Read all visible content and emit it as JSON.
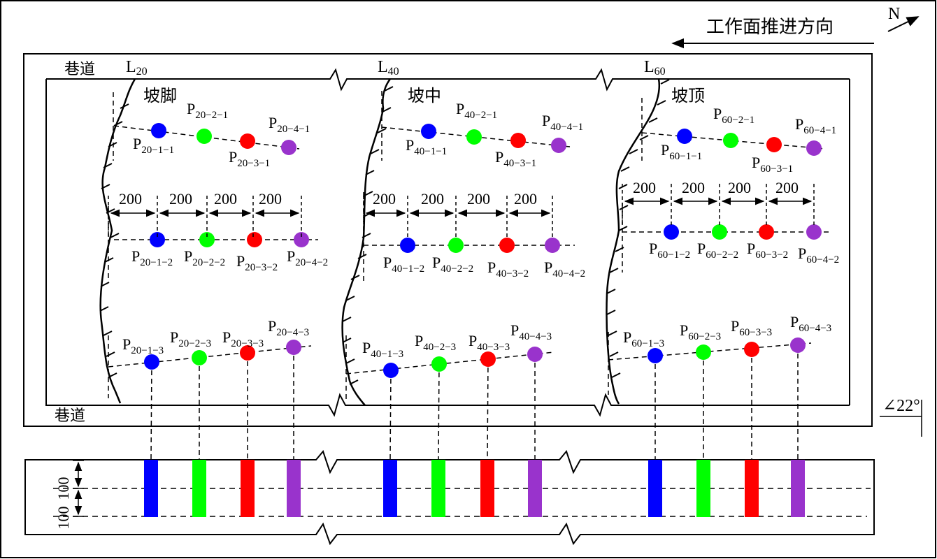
{
  "direction": {
    "label": "工作面推进方向",
    "north": "N"
  },
  "roadway_label": "巷道",
  "angle_label": "∠22°",
  "column_dims": {
    "a": "100",
    "b": "100"
  },
  "spacing_label": "200",
  "colors": {
    "p1": "#0000ff",
    "p2": "#00ff00",
    "p3": "#ff0000",
    "p4": "#9933cc"
  },
  "sections": [
    {
      "line": "L",
      "line_sub": "20",
      "position": "坡脚",
      "rows": [
        [
          "20-1-1",
          "20-2-1",
          "20-3-1",
          "20-4-1"
        ],
        [
          "20-1-2",
          "20-2-2",
          "20-3-2",
          "20-4-2"
        ],
        [
          "20-1-3",
          "20-2-3",
          "20-3-3",
          "20-4-3"
        ]
      ]
    },
    {
      "line": "L",
      "line_sub": "40",
      "position": "坡中",
      "rows": [
        [
          "40-1-1",
          "40-2-1",
          "40-3-1",
          "40-4-1"
        ],
        [
          "40-1-2",
          "40-2-2",
          "40-3-2",
          "40-4-2"
        ],
        [
          "40-1-3",
          "40-2-3",
          "40-3-3",
          "40-4-3"
        ]
      ]
    },
    {
      "line": "L",
      "line_sub": "60",
      "position": "坡顶",
      "rows": [
        [
          "60-1-1",
          "60-2-1",
          "60-3-1",
          "60-4-1"
        ],
        [
          "60-1-2",
          "60-2-2",
          "60-3-2",
          "60-4-2"
        ],
        [
          "60-1-3",
          "60-2-3",
          "60-3-3",
          "60-4-3"
        ]
      ]
    }
  ]
}
